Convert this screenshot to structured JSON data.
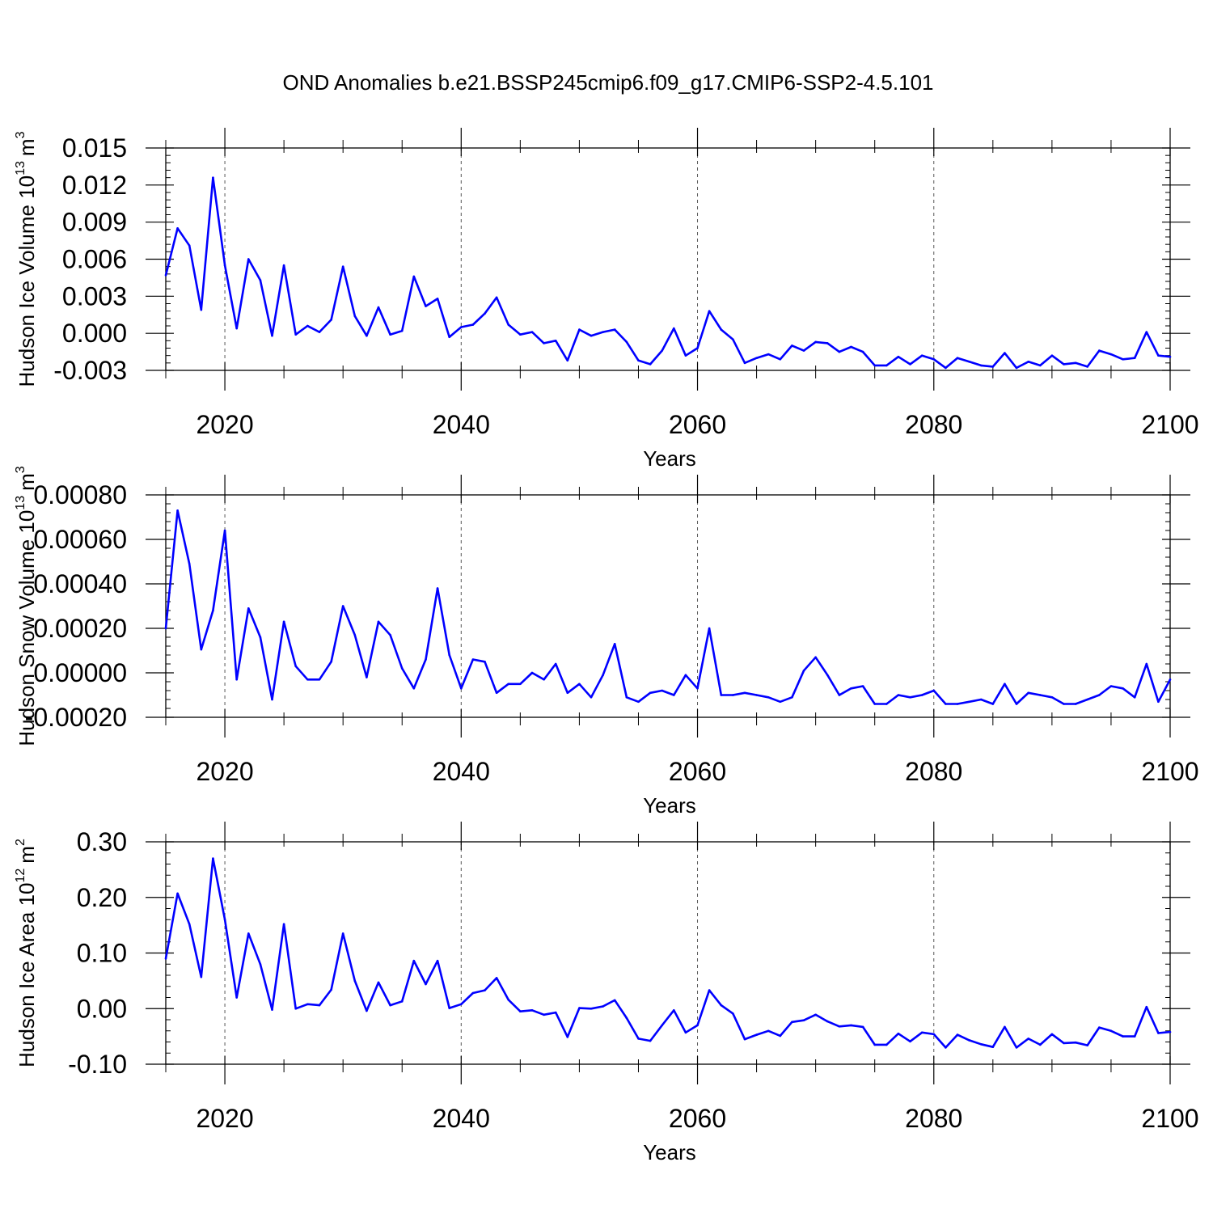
{
  "title": "OND Anomalies b.e21.BSSP245cmip6.f09_g17.CMIP6-SSP2-4.5.101",
  "chart_data": [
    {
      "type": "line",
      "ylabel": "Hudson Ice Volume 10",
      "ylabel_sup": "13",
      "ylabel_unit": "m",
      "ylabel_unit_sup": "3",
      "xlabel": "Years",
      "xlim": [
        2015,
        2100
      ],
      "ylim": [
        -0.003,
        0.015
      ],
      "yticks": [
        -0.003,
        0.0,
        0.003,
        0.006,
        0.009,
        0.012,
        0.015
      ],
      "ytick_labels": [
        "-0.003",
        "0.000",
        "0.003",
        "0.006",
        "0.009",
        "0.012",
        "0.015"
      ],
      "xticks": [
        2020,
        2040,
        2060,
        2080,
        2100
      ],
      "xtick_labels": [
        "2020",
        "2040",
        "2060",
        "2080",
        "2100"
      ],
      "line_color": "#0000ff",
      "start_year": 2015,
      "values": [
        0.0047,
        0.0085,
        0.0071,
        0.0019,
        0.0126,
        0.0055,
        0.0004,
        0.006,
        0.0043,
        -0.0002,
        0.0055,
        -0.0001,
        0.0006,
        0.0001,
        0.0011,
        0.0054,
        0.0014,
        -0.0002,
        0.0021,
        -0.0001,
        0.0002,
        0.0046,
        0.0022,
        0.0028,
        -0.0003,
        0.0005,
        0.0007,
        0.0016,
        0.0029,
        0.0007,
        -0.0001,
        0.0001,
        -0.0008,
        -0.0006,
        -0.0022,
        0.0003,
        -0.0002,
        0.0001,
        0.0003,
        -0.0007,
        -0.0022,
        -0.0025,
        -0.0014,
        0.0004,
        -0.0018,
        -0.0012,
        0.0018,
        0.0003,
        -0.0005,
        -0.0024,
        -0.002,
        -0.0017,
        -0.0021,
        -0.001,
        -0.0014,
        -0.0007,
        -0.0008,
        -0.0015,
        -0.0011,
        -0.0015,
        -0.0026,
        -0.0026,
        -0.0019,
        -0.0025,
        -0.0018,
        -0.0021,
        -0.0028,
        -0.002,
        -0.0023,
        -0.0026,
        -0.0027,
        -0.0016,
        -0.0028,
        -0.0023,
        -0.0026,
        -0.0018,
        -0.0025,
        -0.0024,
        -0.0027,
        -0.0014,
        -0.0017,
        -0.0021,
        -0.002,
        0.0001,
        -0.0018,
        -0.0019
      ]
    },
    {
      "type": "line",
      "ylabel": "Hudson Snow Volume 10",
      "ylabel_sup": "13",
      "ylabel_unit": "m",
      "ylabel_unit_sup": "3",
      "xlabel": "Years",
      "xlim": [
        2015,
        2100
      ],
      "ylim": [
        -0.0002,
        0.0008
      ],
      "yticks": [
        -0.0002,
        0.0,
        0.0002,
        0.0004,
        0.0006,
        0.0008
      ],
      "ytick_labels": [
        "-0.00020",
        "0.00000",
        "0.00020",
        "0.00040",
        "0.00060",
        "0.00080"
      ],
      "xticks": [
        2020,
        2040,
        2060,
        2080,
        2100
      ],
      "xtick_labels": [
        "2020",
        "2040",
        "2060",
        "2080",
        "2100"
      ],
      "line_color": "#0000ff",
      "start_year": 2015,
      "values": [
        0.0002,
        0.00073,
        0.00049,
        0.000105,
        0.00028,
        0.00064,
        -3e-05,
        0.00029,
        0.00016,
        -0.00012,
        0.00023,
        3e-05,
        -3e-05,
        -3e-05,
        5e-05,
        0.0003,
        0.00017,
        -2e-05,
        0.00023,
        0.00017,
        2e-05,
        -7e-05,
        6e-05,
        0.00038,
        8e-05,
        -7e-05,
        6e-05,
        5e-05,
        -9e-05,
        -5e-05,
        -5e-05,
        0.0,
        -3e-05,
        4e-05,
        -9e-05,
        -5e-05,
        -0.00011,
        -1e-05,
        0.00013,
        -0.00011,
        -0.00013,
        -9e-05,
        -8e-05,
        -0.0001,
        -1e-05,
        -7e-05,
        0.0002,
        -0.0001,
        -0.0001,
        -9e-05,
        -0.0001,
        -0.00011,
        -0.00013,
        -0.00011,
        1e-05,
        7e-05,
        -1e-05,
        -0.0001,
        -7e-05,
        -6e-05,
        -0.00014,
        -0.00014,
        -0.0001,
        -0.00011,
        -0.0001,
        -8e-05,
        -0.00014,
        -0.00014,
        -0.00013,
        -0.00012,
        -0.00014,
        -5e-05,
        -0.00014,
        -9e-05,
        -0.0001,
        -0.00011,
        -0.00014,
        -0.00014,
        -0.00012,
        -0.0001,
        -6e-05,
        -7e-05,
        -0.00011,
        4e-05,
        -0.00013,
        -3e-05
      ]
    },
    {
      "type": "line",
      "ylabel": "Hudson Ice Area 10",
      "ylabel_sup": "12",
      "ylabel_unit": "m",
      "ylabel_unit_sup": "2",
      "xlabel": "Years",
      "xlim": [
        2015,
        2100
      ],
      "ylim": [
        -0.1,
        0.3
      ],
      "yticks": [
        -0.1,
        0.0,
        0.1,
        0.2,
        0.3
      ],
      "ytick_labels": [
        "-0.10",
        "0.00",
        "0.10",
        "0.20",
        "0.30"
      ],
      "xticks": [
        2020,
        2040,
        2060,
        2080,
        2100
      ],
      "xtick_labels": [
        "2020",
        "2040",
        "2060",
        "2080",
        "2100"
      ],
      "line_color": "#0000ff",
      "start_year": 2015,
      "values": [
        0.09,
        0.207,
        0.152,
        0.057,
        0.27,
        0.16,
        0.02,
        0.135,
        0.08,
        -0.002,
        0.152,
        0.0,
        0.008,
        0.006,
        0.034,
        0.135,
        0.05,
        -0.004,
        0.047,
        0.006,
        0.013,
        0.086,
        0.044,
        0.086,
        0.001,
        0.008,
        0.028,
        0.033,
        0.055,
        0.016,
        -0.005,
        -0.003,
        -0.011,
        -0.007,
        -0.051,
        0.001,
        0.0,
        0.004,
        0.015,
        -0.017,
        -0.054,
        -0.058,
        -0.03,
        -0.003,
        -0.043,
        -0.03,
        0.033,
        0.006,
        -0.009,
        -0.055,
        -0.047,
        -0.04,
        -0.049,
        -0.024,
        -0.021,
        -0.011,
        -0.023,
        -0.032,
        -0.03,
        -0.033,
        -0.065,
        -0.065,
        -0.045,
        -0.059,
        -0.043,
        -0.046,
        -0.07,
        -0.047,
        -0.057,
        -0.064,
        -0.069,
        -0.033,
        -0.07,
        -0.054,
        -0.065,
        -0.046,
        -0.062,
        -0.061,
        -0.066,
        -0.034,
        -0.04,
        -0.05,
        -0.05,
        0.003,
        -0.044,
        -0.042
      ]
    }
  ]
}
